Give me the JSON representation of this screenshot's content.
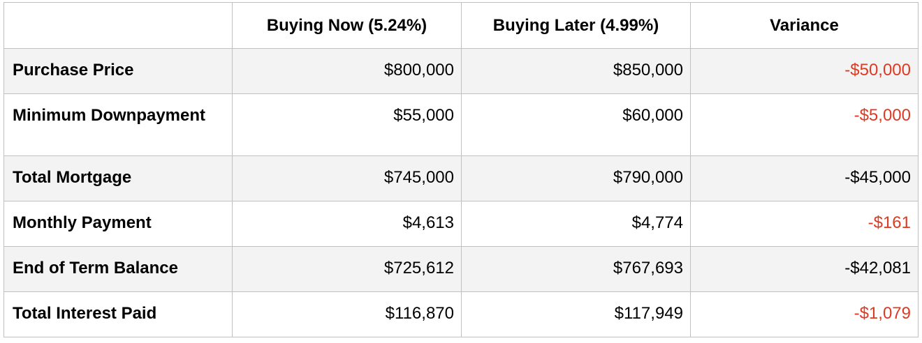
{
  "table": {
    "headers": [
      "",
      "Buying Now (5.24%)",
      "Buying Later (4.99%)",
      "Variance"
    ],
    "rows": [
      {
        "label": "Purchase Price",
        "now": "$800,000",
        "later": "$850,000",
        "variance": "-$50,000",
        "variance_color": "#dc3a22"
      },
      {
        "label": "Minimum Downpayment",
        "now": "$55,000",
        "later": "$60,000",
        "variance": "-$5,000",
        "variance_color": "#dc3a22"
      },
      {
        "label": "Total Mortgage",
        "now": "$745,000",
        "later": "$790,000",
        "variance": "-$45,000",
        "variance_color": "#000000"
      },
      {
        "label": "Monthly Payment",
        "now": "$4,613",
        "later": "$4,774",
        "variance": "-$161",
        "variance_color": "#dc3a22"
      },
      {
        "label": "End of Term Balance",
        "now": "$725,612",
        "later": "$767,693",
        "variance": "-$42,081",
        "variance_color": "#000000"
      },
      {
        "label": "Total Interest Paid",
        "now": "$116,870",
        "later": "$117,949",
        "variance": "-$1,079",
        "variance_color": "#dc3a22"
      }
    ]
  }
}
